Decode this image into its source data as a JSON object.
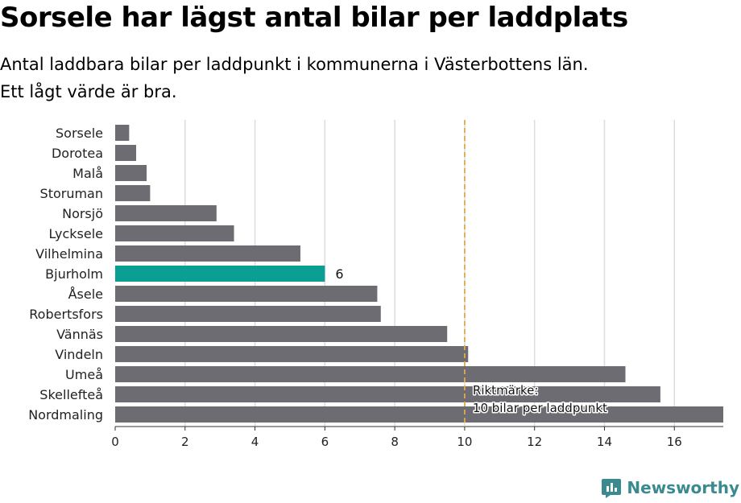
{
  "title": "Sorsele har lägst antal bilar per laddplats",
  "subtitle_lines": [
    "Antal laddbara bilar per laddpunkt i kommunerna i Västerbottens län.",
    "Ett lågt värde är bra."
  ],
  "brand": {
    "name": "Newsworthy",
    "icon": "newsworthy-logo-icon"
  },
  "colors": {
    "bar": "#6d6c72",
    "highlight": "#0b9e93",
    "reference": "#e1a94c",
    "grid": "#dcdcdc"
  },
  "chart_data": {
    "type": "bar",
    "orientation": "horizontal",
    "categories": [
      "Sorsele",
      "Dorotea",
      "Malå",
      "Storuman",
      "Norsjö",
      "Lycksele",
      "Vilhelmina",
      "Bjurholm",
      "Åsele",
      "Robertsfors",
      "Vännäs",
      "Vindeln",
      "Umeå",
      "Skellefteå",
      "Nordmaling"
    ],
    "values": [
      0.4,
      0.6,
      0.9,
      1.0,
      2.9,
      3.4,
      5.3,
      6.0,
      7.5,
      7.6,
      9.5,
      10.1,
      14.6,
      15.6,
      17.4
    ],
    "highlight": {
      "category": "Bjurholm",
      "label": "6"
    },
    "xlim": [
      0,
      17.4
    ],
    "xticks": [
      0,
      2,
      4,
      6,
      8,
      10,
      12,
      14,
      16
    ],
    "grid": true,
    "reference_line": {
      "value": 10,
      "label_lines": [
        "Riktmärke:",
        "10 bilar per laddpunkt"
      ]
    }
  }
}
